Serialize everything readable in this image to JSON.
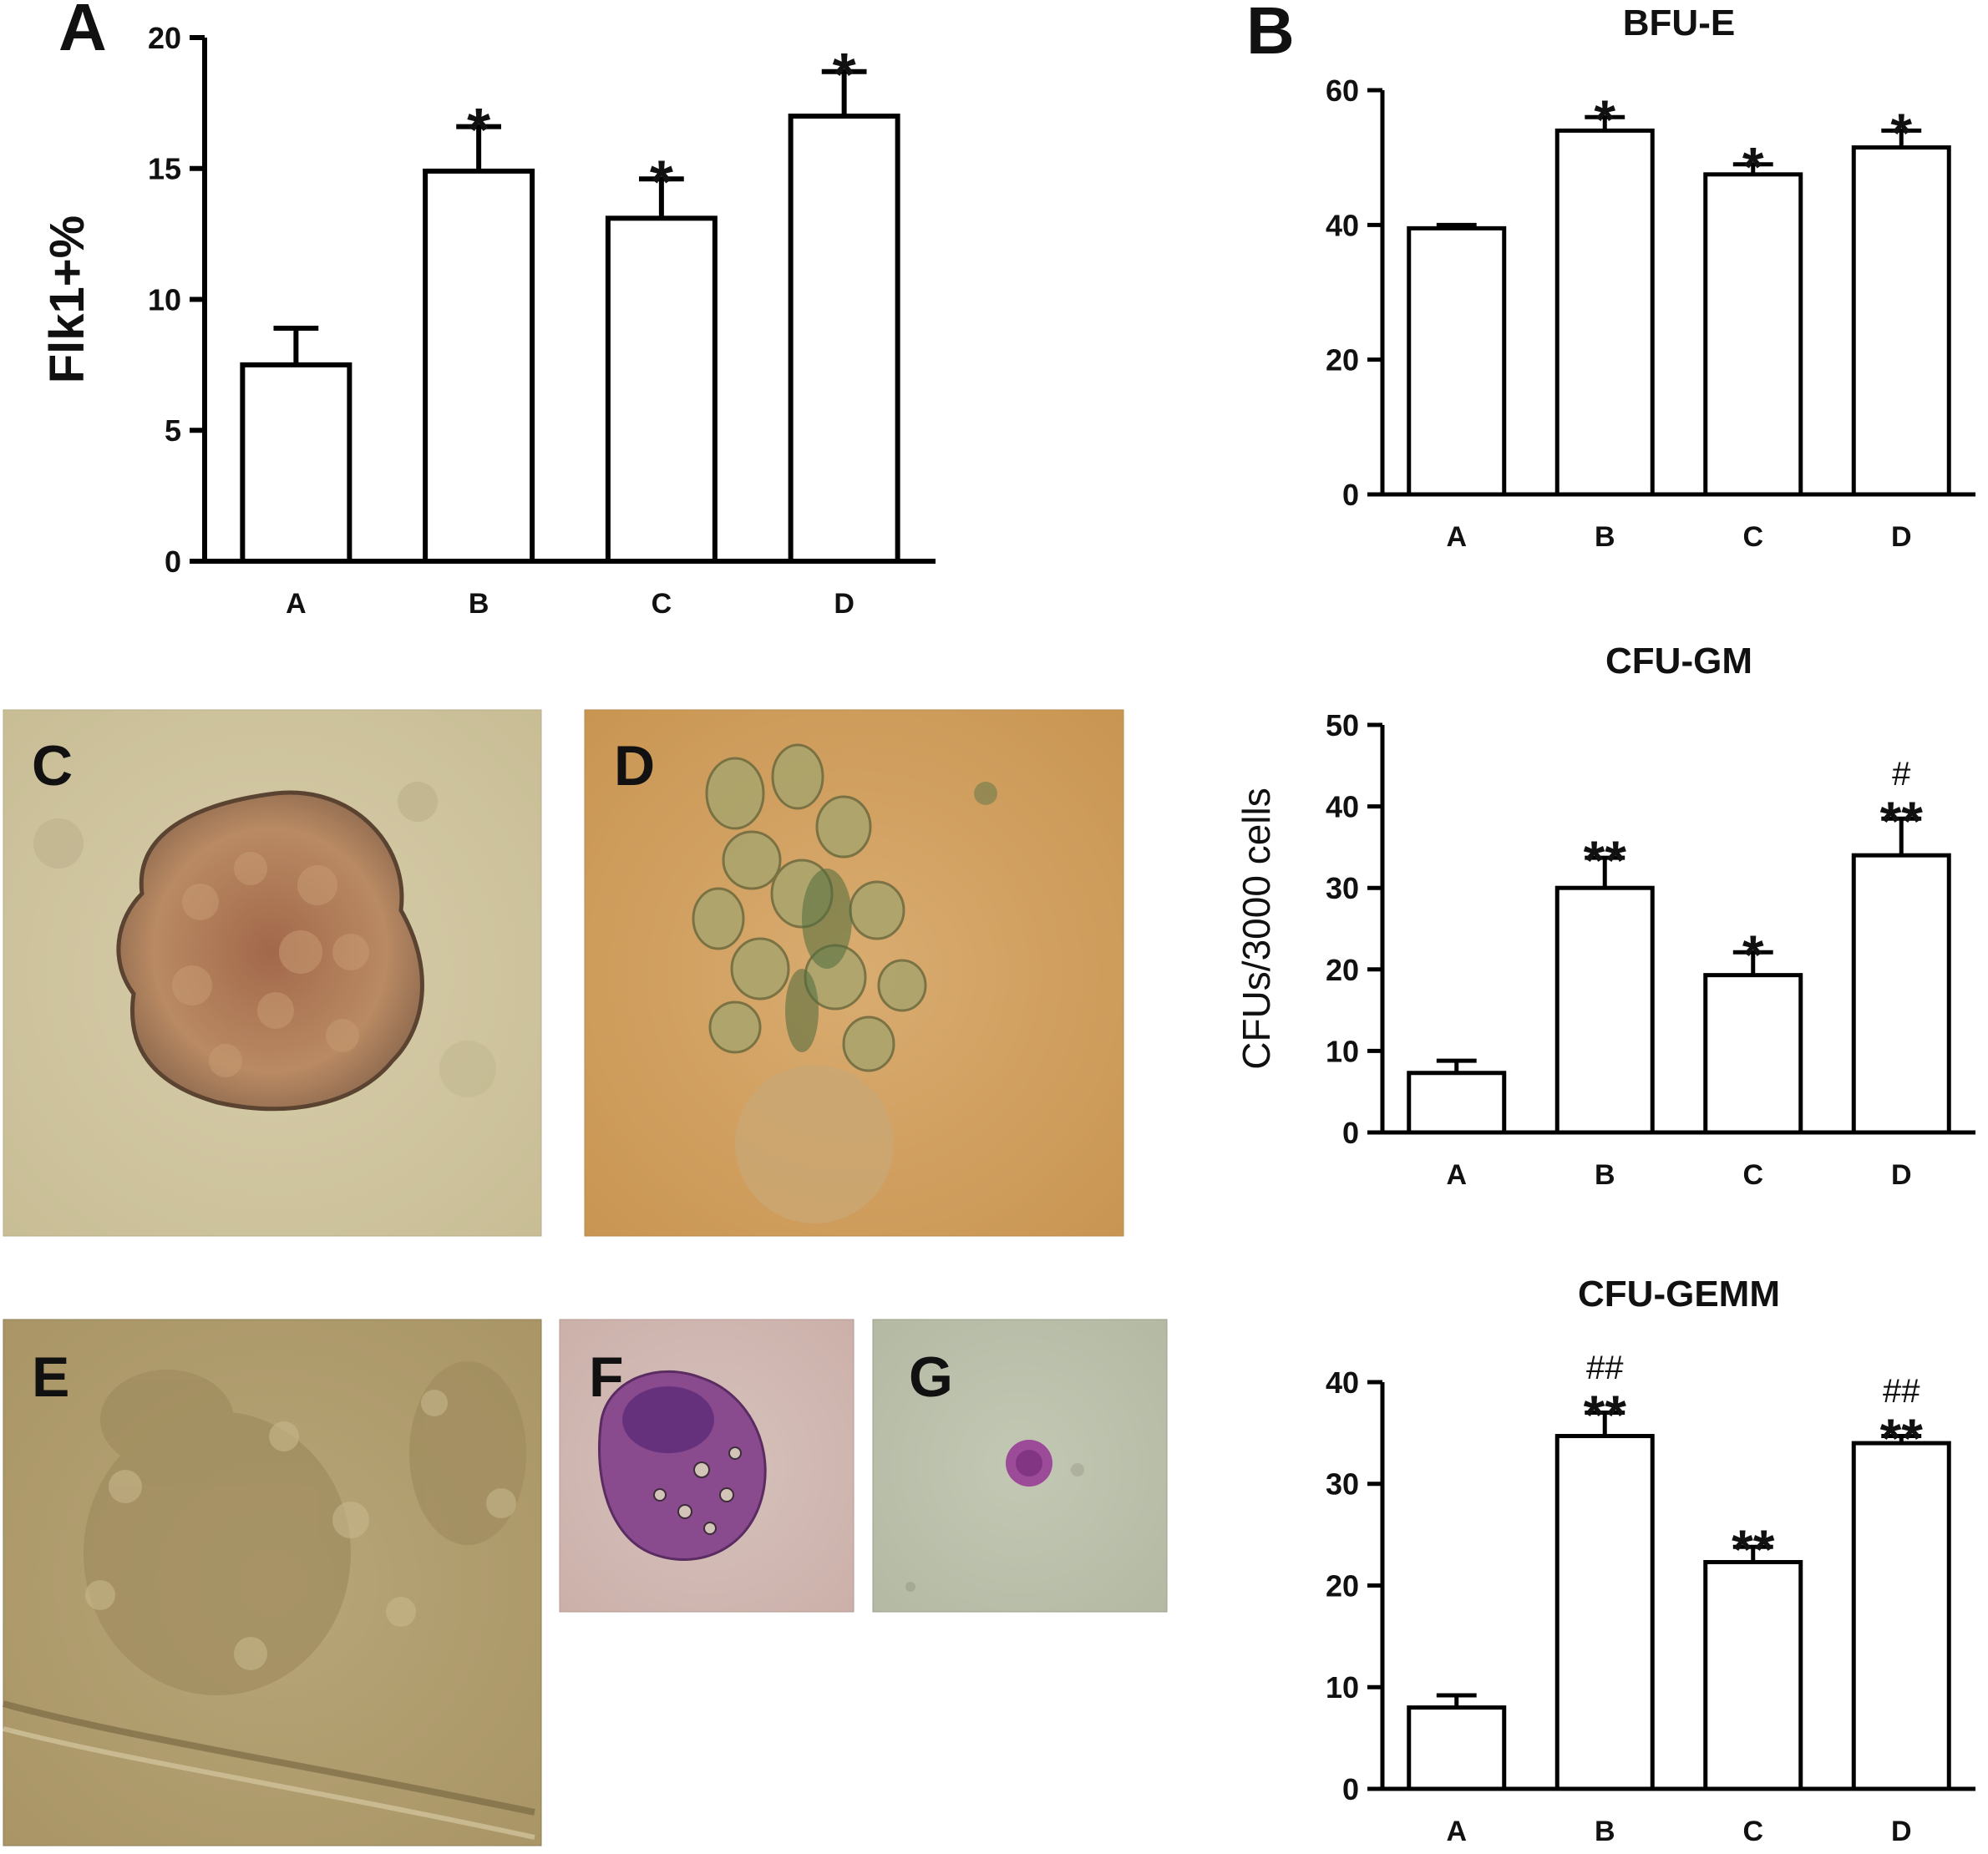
{
  "figure": {
    "panel_letters": {
      "A": "A",
      "B": "B",
      "C": "C",
      "D": "D",
      "E": "E",
      "F": "F",
      "G": "G"
    },
    "colors": {
      "bar_fill": "#ffffff",
      "stroke": "#000000"
    }
  },
  "chart_data": [
    {
      "type": "bar",
      "panel": "A",
      "title": "",
      "xlabel": "",
      "ylabel": "Flk1+%",
      "categories": [
        "A",
        "B",
        "C",
        "D"
      ],
      "values": [
        7.5,
        14.9,
        13.1,
        17.0
      ],
      "errors": [
        1.4,
        1.7,
        1.5,
        1.7
      ],
      "annotations": [
        "",
        "*",
        "*",
        "*"
      ],
      "ylim": [
        0,
        20
      ],
      "yticks": [
        0,
        5,
        10,
        15,
        20
      ],
      "grid": false
    },
    {
      "type": "bar",
      "panel": "B",
      "title": "BFU-E",
      "xlabel": "",
      "ylabel": "",
      "categories": [
        "A",
        "B",
        "C",
        "D"
      ],
      "values": [
        39.5,
        54.0,
        47.5,
        51.5
      ],
      "errors": [
        0.5,
        2.0,
        1.5,
        2.5
      ],
      "annotations": [
        "",
        "*",
        "*",
        "*"
      ],
      "ylim": [
        0,
        60
      ],
      "yticks": [
        0,
        20,
        40,
        60
      ],
      "grid": false
    },
    {
      "type": "bar",
      "panel": "B",
      "title": "CFU-GM",
      "xlabel": "",
      "ylabel": "CFUs/3000 cells",
      "categories": [
        "A",
        "B",
        "C",
        "D"
      ],
      "values": [
        7.3,
        30.0,
        19.3,
        34.0
      ],
      "errors": [
        1.5,
        3.7,
        2.8,
        4.5
      ],
      "annotations": [
        "",
        "**",
        "*",
        "#\n**"
      ],
      "ylim": [
        0,
        50
      ],
      "yticks": [
        0,
        10,
        20,
        30,
        40,
        50
      ],
      "grid": false
    },
    {
      "type": "bar",
      "panel": "B",
      "title": "CFU-GEMM",
      "xlabel": "",
      "ylabel": "",
      "categories": [
        "A",
        "B",
        "C",
        "D"
      ],
      "values": [
        8.0,
        34.7,
        22.3,
        34.0
      ],
      "errors": [
        1.2,
        2.3,
        1.5,
        0.7
      ],
      "annotations": [
        "",
        "##\n**",
        "**",
        "##\n**"
      ],
      "ylim": [
        0,
        40
      ],
      "yticks": [
        0,
        10,
        20,
        30,
        40
      ],
      "grid": false
    }
  ]
}
